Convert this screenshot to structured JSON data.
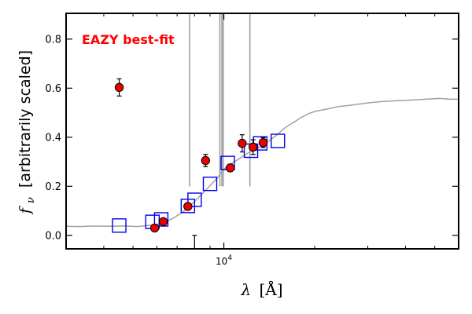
{
  "chart_data": {
    "type": "scatter",
    "xscale": "log",
    "xlim": [
      3000,
      60000
    ],
    "ylim": [
      -0.055,
      0.905
    ],
    "xlabel_symbol": "λ",
    "xlabel_unit": "[Å]",
    "ylabel_symbol": "f",
    "ylabel_sub": "ν",
    "ylabel_text": "[arbitrarily scaled]",
    "ytick_values": [
      0.0,
      0.2,
      0.4,
      0.6,
      0.8
    ],
    "ytick_labels": [
      "0.0",
      "0.2",
      "0.4",
      "0.6",
      "0.8"
    ],
    "xtick_label_base": "10",
    "xtick_label_exp": "4",
    "xtick_major_value": 10000,
    "xtick_minor_values": [
      4000,
      5000,
      6000,
      7000,
      8000,
      9000,
      20000,
      30000,
      40000,
      50000
    ],
    "annotation": "EAZY best-fit",
    "annotation_color": "#ff0000",
    "sed_color": "#a0a0a0",
    "model_box_color": "#0000ee",
    "obs_color": "#ee0000",
    "model_points": [
      {
        "x": 4500,
        "y": 0.04
      },
      {
        "x": 5800,
        "y": 0.055
      },
      {
        "x": 6200,
        "y": 0.065
      },
      {
        "x": 7600,
        "y": 0.12
      },
      {
        "x": 8000,
        "y": 0.145
      },
      {
        "x": 9000,
        "y": 0.21
      },
      {
        "x": 10300,
        "y": 0.295
      },
      {
        "x": 12300,
        "y": 0.345
      },
      {
        "x": 13200,
        "y": 0.375
      },
      {
        "x": 15100,
        "y": 0.385
      }
    ],
    "observed_points": [
      {
        "x": 4500,
        "y": 0.603,
        "err": 0.035
      },
      {
        "x": 5900,
        "y": 0.03,
        "err": 0.0
      },
      {
        "x": 6300,
        "y": 0.056,
        "err": 0.0
      },
      {
        "x": 7600,
        "y": 0.118,
        "err": 0.0
      },
      {
        "x": 8700,
        "y": 0.305,
        "err": 0.025
      },
      {
        "x": 10500,
        "y": 0.275,
        "err": 0.015
      },
      {
        "x": 11500,
        "y": 0.375,
        "err": 0.035
      },
      {
        "x": 12500,
        "y": 0.36,
        "err": 0.03
      },
      {
        "x": 13500,
        "y": 0.378,
        "err": 0.02
      }
    ],
    "upper_limit": {
      "x": 8000,
      "y": 0.0
    },
    "emission_lines_x": [
      7700,
      9700,
      9850,
      9950,
      12200
    ],
    "sed_curve": [
      [
        3000,
        0.037
      ],
      [
        3300,
        0.036
      ],
      [
        3700,
        0.038
      ],
      [
        4200,
        0.037
      ],
      [
        4700,
        0.038
      ],
      [
        5200,
        0.036
      ],
      [
        5600,
        0.04
      ],
      [
        6000,
        0.045
      ],
      [
        6300,
        0.05
      ],
      [
        6600,
        0.062
      ],
      [
        6900,
        0.075
      ],
      [
        7200,
        0.09
      ],
      [
        7500,
        0.105
      ],
      [
        7800,
        0.125
      ],
      [
        8100,
        0.145
      ],
      [
        8400,
        0.165
      ],
      [
        8800,
        0.19
      ],
      [
        9200,
        0.215
      ],
      [
        9600,
        0.24
      ],
      [
        10000,
        0.27
      ],
      [
        10500,
        0.29
      ],
      [
        11000,
        0.305
      ],
      [
        11500,
        0.32
      ],
      [
        12000,
        0.335
      ],
      [
        12800,
        0.35
      ],
      [
        13500,
        0.37
      ],
      [
        14300,
        0.39
      ],
      [
        15000,
        0.41
      ],
      [
        16000,
        0.44
      ],
      [
        17000,
        0.46
      ],
      [
        18000,
        0.48
      ],
      [
        19000,
        0.495
      ],
      [
        20000,
        0.505
      ],
      [
        22000,
        0.515
      ],
      [
        24000,
        0.525
      ],
      [
        26000,
        0.53
      ],
      [
        28000,
        0.535
      ],
      [
        30000,
        0.54
      ],
      [
        33000,
        0.545
      ],
      [
        36000,
        0.548
      ],
      [
        40000,
        0.55
      ],
      [
        44000,
        0.553
      ],
      [
        48000,
        0.556
      ],
      [
        52000,
        0.558
      ],
      [
        56000,
        0.555
      ],
      [
        60000,
        0.555
      ]
    ]
  }
}
